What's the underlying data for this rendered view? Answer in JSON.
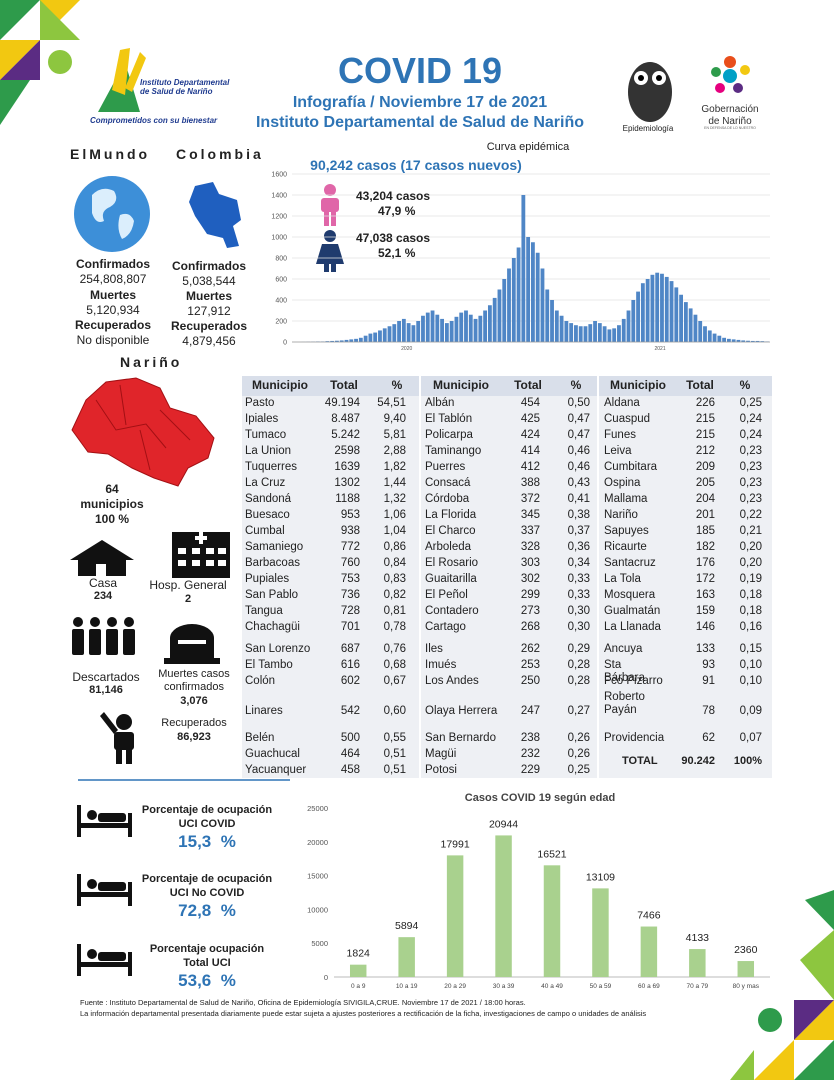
{
  "header": {
    "title": "COVID 19",
    "subtitle": "Infografía / Noviembre 17 de 2021",
    "institution": "Instituto Departamental de Salud de Nariño",
    "logo_left": {
      "name": "Instituto Departamental de Salud de Nariño",
      "tagline": "Comprometidos con su bienestar"
    },
    "logo_epi": "Epidemiología",
    "logo_gob": {
      "name": "Gobernación de Nariño",
      "tagline": "EN DEFENSA DE LO NUESTRO"
    }
  },
  "world": {
    "title": "ElMundo",
    "confirmed_label": "Confirmados",
    "confirmed": "254,808,807",
    "deaths_label": "Muertes",
    "deaths": "5,120,934",
    "recovered_label": "Recuperados",
    "recovered": "No disponible"
  },
  "colombia": {
    "title": "Colombia",
    "confirmed_label": "Confirmados",
    "confirmed": "5,038,544",
    "deaths_label": "Muertes",
    "deaths": "127,912",
    "recovered_label": "Recuperados",
    "recovered": "4,879,456"
  },
  "narino": {
    "title": "Nariño",
    "count": "64",
    "count_label": "municipios",
    "pct": "100 %",
    "house_label": "Casa",
    "house": "234",
    "hospital_label": "Hosp. General",
    "hospital": "2",
    "discarded_label": "Descartados",
    "discarded": "81,146",
    "deaths_label": "Muertes casos confirmados",
    "deaths": "3,076",
    "recovered_label": "Recuperados",
    "recovered": "86,923"
  },
  "chart_data": [
    {
      "type": "bar",
      "title": "Curva epidémica",
      "subtitle": "90,242 casos (17 casos nuevos)",
      "men": {
        "cases": "43,204  casos",
        "pct": "47,9 %"
      },
      "women": {
        "cases": "47,038  casos",
        "pct": "52,1 %"
      },
      "year_labels": [
        "2020",
        "2021"
      ],
      "color": "#4f86c6",
      "grid": true,
      "ylim": [
        0,
        1600
      ],
      "yticks": [
        0,
        200,
        400,
        600,
        800,
        1000,
        1200,
        1400,
        1600
      ],
      "values": [
        0,
        0,
        1,
        2,
        3,
        5,
        5,
        8,
        10,
        12,
        15,
        20,
        25,
        30,
        40,
        60,
        80,
        90,
        110,
        130,
        150,
        170,
        200,
        220,
        180,
        160,
        200,
        250,
        280,
        300,
        260,
        220,
        180,
        200,
        240,
        280,
        300,
        260,
        220,
        250,
        300,
        350,
        420,
        500,
        600,
        700,
        800,
        900,
        1400,
        1000,
        950,
        850,
        700,
        500,
        400,
        300,
        250,
        200,
        180,
        160,
        150,
        150,
        170,
        200,
        180,
        150,
        120,
        130,
        160,
        220,
        300,
        400,
        480,
        560,
        600,
        640,
        660,
        650,
        620,
        580,
        520,
        450,
        380,
        320,
        260,
        200,
        150,
        110,
        80,
        60,
        40,
        30,
        25,
        20,
        15,
        12,
        10,
        10,
        8,
        5
      ]
    },
    {
      "type": "bar",
      "title": "Casos COVID 19  según edad",
      "color": "#a9d18e",
      "grid": false,
      "categories": [
        "0 a 9",
        "10 a 19",
        "20 a 29",
        "30 a 39",
        "40 a 49",
        "50 a 59",
        "60 a 69",
        "70 a 79",
        "80 y mas"
      ],
      "values": [
        1824,
        5894,
        17991,
        20944,
        16521,
        13109,
        7466,
        4133,
        2360
      ],
      "ylim": [
        0,
        25000
      ],
      "yticks": [
        0,
        5000,
        10000,
        15000,
        20000,
        25000
      ]
    }
  ],
  "table": {
    "columns": [
      "Municipio",
      "Total",
      "%"
    ],
    "groups": [
      [
        [
          "Pasto",
          "49.194",
          "54,51"
        ],
        [
          "Ipiales",
          "8.487",
          "9,40"
        ],
        [
          "Tumaco",
          "5.242",
          "5,81"
        ],
        [
          "La Union",
          "2598",
          "2,88"
        ],
        [
          "Tuquerres",
          "1639",
          "1,82"
        ],
        [
          "La Cruz",
          "1302",
          "1,44"
        ],
        [
          "Sandoná",
          "1188",
          "1,32"
        ],
        [
          "Buesaco",
          "953",
          "1,06"
        ],
        [
          "Cumbal",
          "938",
          "1,04"
        ],
        [
          "Samaniego",
          "772",
          "0,86"
        ],
        [
          "Barbacoas",
          "760",
          "0,84"
        ],
        [
          "Pupiales",
          "753",
          "0,83"
        ],
        [
          "San Pablo",
          "736",
          "0,82"
        ],
        [
          "Tangua",
          "728",
          "0,81"
        ],
        [
          "Chachagüi",
          "701",
          "0,78"
        ],
        [
          "San Lorenzo",
          "687",
          "0,76"
        ],
        [
          "El Tambo",
          "616",
          "0,68"
        ],
        [
          "Colón",
          "602",
          "0,67"
        ],
        [
          "Linares",
          "542",
          "0,60"
        ],
        [
          "Belén",
          "500",
          "0,55"
        ],
        [
          "Guachucal",
          "464",
          "0,51"
        ],
        [
          "Yacuanquer",
          "458",
          "0,51"
        ]
      ],
      [
        [
          "Albán",
          "454",
          "0,50"
        ],
        [
          "El Tablón",
          "425",
          "0,47"
        ],
        [
          "Policarpa",
          "424",
          "0,47"
        ],
        [
          "Taminango",
          "414",
          "0,46"
        ],
        [
          "Puerres",
          "412",
          "0,46"
        ],
        [
          "Consacá",
          "388",
          "0,43"
        ],
        [
          "Córdoba",
          "372",
          "0,41"
        ],
        [
          "La Florida",
          "345",
          "0,38"
        ],
        [
          "El Charco",
          "337",
          "0,37"
        ],
        [
          "Arboleda",
          "328",
          "0,36"
        ],
        [
          "El Rosario",
          "303",
          "0,34"
        ],
        [
          "Guaitarilla",
          "302",
          "0,33"
        ],
        [
          "El Peñol",
          "299",
          "0,33"
        ],
        [
          "Contadero",
          "273",
          "0,30"
        ],
        [
          "Cartago",
          "268",
          "0,30"
        ],
        [
          "Iles",
          "262",
          "0,29"
        ],
        [
          "Imués",
          "253",
          "0,28"
        ],
        [
          "Los Andes",
          "250",
          "0,28"
        ],
        [
          "Olaya Herrera",
          "247",
          "0,27"
        ],
        [
          "San Bernardo",
          "238",
          "0,26"
        ],
        [
          "Magüi",
          "232",
          "0,26"
        ],
        [
          "Potosi",
          "229",
          "0,25"
        ]
      ],
      [
        [
          "Aldana",
          "226",
          "0,25"
        ],
        [
          "Cuaspud",
          "215",
          "0,24"
        ],
        [
          "Funes",
          "215",
          "0,24"
        ],
        [
          "Leiva",
          "212",
          "0,23"
        ],
        [
          "Cumbitara",
          "209",
          "0,23"
        ],
        [
          "Ospina",
          "205",
          "0,23"
        ],
        [
          "Mallama",
          "204",
          "0,23"
        ],
        [
          "Nariño",
          "201",
          "0,22"
        ],
        [
          "Sapuyes",
          "185",
          "0,21"
        ],
        [
          "Ricaurte",
          "182",
          "0,20"
        ],
        [
          "Santacruz",
          "176",
          "0,20"
        ],
        [
          "La Tola",
          "172",
          "0,19"
        ],
        [
          "Mosquera",
          "163",
          "0,18"
        ],
        [
          "Gualmatán",
          "159",
          "0,18"
        ],
        [
          "La Llanada",
          "146",
          "0,16"
        ],
        [
          "Ancuya",
          "133",
          "0,15"
        ],
        [
          "Sta Bárbara",
          "93",
          "0,10"
        ],
        [
          "Fco Pizarro",
          "91",
          "0,10"
        ],
        [
          "Roberto Payán",
          "78",
          "0,09"
        ],
        [
          "Providencia",
          "62",
          "0,07"
        ]
      ]
    ],
    "total": [
      "TOTAL",
      "90.242",
      "100%"
    ]
  },
  "icu": [
    {
      "label": "Porcentaje de ocupación",
      "sublabel": "UCI COVID",
      "value": "15,3  %"
    },
    {
      "label": "Porcentaje de ocupación",
      "sublabel": "UCI No COVID",
      "value": "72,8  %"
    },
    {
      "label": "Porcentaje ocupación",
      "sublabel": "Total UCI",
      "value": "53,6  %"
    }
  ],
  "footer": [
    "Fuente : Instituto Departamental de Salud de Nariño, Oficina de Epidemiología SIVIGILA,CRUE.  Noviembre 17 de 2021 / 18:00  horas.",
    "La información departamental presentada diariamente puede estar sujeta a ajustes posteriores a  rectificación de la ficha, investigaciones de campo o unidades de análisis"
  ]
}
